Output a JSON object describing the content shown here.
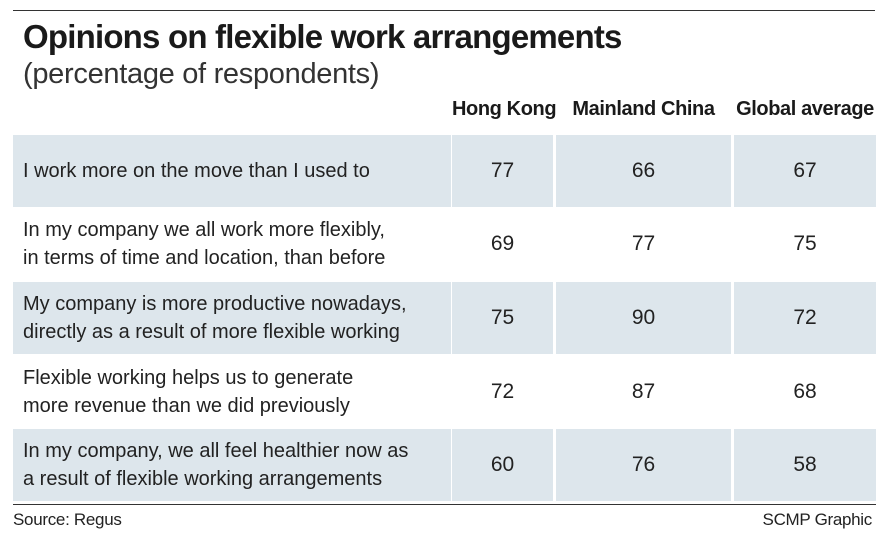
{
  "title": "Opinions on flexible work arrangements",
  "subtitle": "(percentage of respondents)",
  "source": "Source: Regus",
  "credit": "SCMP Graphic",
  "colors": {
    "shade": "#dde6ec",
    "text": "#222222"
  },
  "chart_data": {
    "type": "table",
    "title": "Opinions on flexible work arrangements",
    "subtitle": "(percentage of respondents)",
    "columns": [
      "Hong Kong",
      "Mainland China",
      "Global average"
    ],
    "rows": [
      {
        "label_lines": [
          "I work more on the move than I used to"
        ],
        "values": [
          77,
          66,
          67
        ],
        "shaded": true
      },
      {
        "label_lines": [
          "In my company we all work more flexibly,",
          "in terms of time and location, than before"
        ],
        "values": [
          69,
          77,
          75
        ],
        "shaded": false
      },
      {
        "label_lines": [
          "My company is more productive nowadays,",
          "directly as a result of more flexible working"
        ],
        "values": [
          75,
          90,
          72
        ],
        "shaded": true
      },
      {
        "label_lines": [
          "Flexible working helps us to generate",
          "more revenue than we did previously"
        ],
        "values": [
          72,
          87,
          68
        ],
        "shaded": false
      },
      {
        "label_lines": [
          "In my company, we all feel healthier now as",
          "a result of flexible working arrangements"
        ],
        "values": [
          60,
          76,
          58
        ],
        "shaded": true
      }
    ]
  }
}
